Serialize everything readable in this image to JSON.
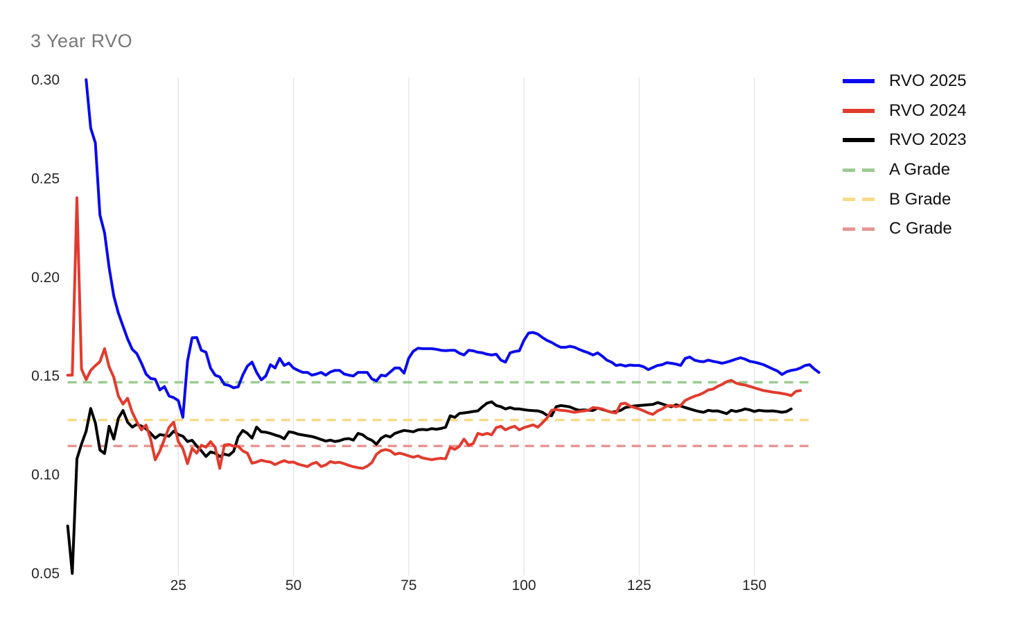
{
  "chart_data": {
    "type": "line",
    "title": "3 Year RVO",
    "xlabel": "",
    "ylabel": "",
    "xlim": [
      0,
      163
    ],
    "ylim": [
      0.05,
      0.3
    ],
    "x_ticks": [
      25,
      50,
      75,
      100,
      125,
      150
    ],
    "x_tick_labels": [
      "25",
      "50",
      "75",
      "100",
      "125",
      "150"
    ],
    "y_ticks": [
      0.3,
      0.25,
      0.2,
      0.15,
      0.1,
      0.05
    ],
    "y_tick_labels": [
      "0.30",
      "0.25",
      "0.20",
      "0.15",
      "0.10",
      "0.05"
    ],
    "grid": "vertical-only",
    "legend_position": "right",
    "series": [
      {
        "name": "RVO 2025",
        "color": "#0a0af0",
        "style": "solid",
        "x_start": 5,
        "values": [
          0.3,
          0.2755,
          0.268,
          0.2315,
          0.2225,
          0.2048,
          0.1905,
          0.1818,
          0.1752,
          0.1688,
          0.1635,
          0.1613,
          0.1565,
          0.151,
          0.1487,
          0.1483,
          0.1429,
          0.1446,
          0.1398,
          0.139,
          0.1375,
          0.129,
          0.1575,
          0.1693,
          0.1695,
          0.163,
          0.162,
          0.154,
          0.1504,
          0.1495,
          0.1457,
          0.1452,
          0.144,
          0.1445,
          0.1505,
          0.155,
          0.157,
          0.1518,
          0.148,
          0.15,
          0.1557,
          0.154,
          0.1589,
          0.1553,
          0.1565,
          0.154,
          0.1528,
          0.1518,
          0.1518,
          0.1504,
          0.151,
          0.1518,
          0.1504,
          0.152,
          0.1528,
          0.1528,
          0.151,
          0.1504,
          0.15,
          0.1518,
          0.1518,
          0.1518,
          0.1485,
          0.1475,
          0.1504,
          0.15,
          0.152,
          0.154,
          0.154,
          0.1514,
          0.159,
          0.1625,
          0.164,
          0.1638,
          0.1638,
          0.1638,
          0.1635,
          0.163,
          0.1628,
          0.163,
          0.163,
          0.1615,
          0.1606,
          0.163,
          0.1627,
          0.162,
          0.1617,
          0.161,
          0.1606,
          0.161,
          0.158,
          0.157,
          0.1617,
          0.1624,
          0.1627,
          0.168,
          0.1717,
          0.172,
          0.1712,
          0.1695,
          0.168,
          0.167,
          0.1656,
          0.1645,
          0.1645,
          0.165,
          0.1645,
          0.1634,
          0.1625,
          0.1617,
          0.1606,
          0.1617,
          0.16,
          0.158,
          0.157,
          0.1553,
          0.1557,
          0.155,
          0.1555,
          0.1553,
          0.1553,
          0.1546,
          0.1532,
          0.1543,
          0.1553,
          0.1557,
          0.1567,
          0.1564,
          0.156,
          0.1553,
          0.1589,
          0.1596,
          0.158,
          0.1574,
          0.1572,
          0.158,
          0.1574,
          0.157,
          0.1564,
          0.157,
          0.1577,
          0.1585,
          0.1592,
          0.1585,
          0.1574,
          0.157,
          0.1564,
          0.1557,
          0.1546,
          0.1535,
          0.1525,
          0.1507,
          0.1521,
          0.1528,
          0.1532,
          0.154,
          0.1553,
          0.1557,
          0.1535,
          0.1518
        ]
      },
      {
        "name": "RVO 2024",
        "color": "#e23b2d",
        "style": "solid",
        "x_start": 1,
        "values": [
          0.1504,
          0.1504,
          0.2402,
          0.1535,
          0.1481,
          0.1528,
          0.1552,
          0.1572,
          0.1638,
          0.1546,
          0.1493,
          0.1398,
          0.1357,
          0.1387,
          0.1316,
          0.1268,
          0.1227,
          0.1251,
          0.118,
          0.1075,
          0.112,
          0.118,
          0.124,
          0.1266,
          0.1167,
          0.1132,
          0.1056,
          0.1133,
          0.1109,
          0.1149,
          0.1139,
          0.1167,
          0.1139,
          0.1032,
          0.115,
          0.1153,
          0.1144,
          0.1144,
          0.112,
          0.1109,
          0.1058,
          0.1064,
          0.1073,
          0.1067,
          0.1064,
          0.1051,
          0.1062,
          0.1071,
          0.1062,
          0.1064,
          0.1053,
          0.1047,
          0.1041,
          0.1055,
          0.1062,
          0.1041,
          0.1049,
          0.1066,
          0.106,
          0.1063,
          0.1055,
          0.1047,
          0.104,
          0.1035,
          0.1032,
          0.1043,
          0.1061,
          0.1103,
          0.1121,
          0.1127,
          0.1121,
          0.1103,
          0.1109,
          0.1103,
          0.1095,
          0.1088,
          0.1095,
          0.1085,
          0.108,
          0.1076,
          0.108,
          0.1083,
          0.108,
          0.1138,
          0.1128,
          0.1144,
          0.118,
          0.1149,
          0.1158,
          0.1209,
          0.1202,
          0.1209,
          0.1202,
          0.1238,
          0.1245,
          0.1227,
          0.1238,
          0.1245,
          0.1227,
          0.1238,
          0.1245,
          0.1252,
          0.124,
          0.1262,
          0.1287,
          0.1326,
          0.133,
          0.1326,
          0.1324,
          0.132,
          0.1316,
          0.132,
          0.1323,
          0.1326,
          0.134,
          0.1337,
          0.1333,
          0.1323,
          0.1316,
          0.1312,
          0.1358,
          0.1362,
          0.1348,
          0.134,
          0.1333,
          0.1323,
          0.1312,
          0.1305,
          0.1323,
          0.1333,
          0.1348,
          0.135,
          0.1344,
          0.135,
          0.1376,
          0.1387,
          0.1397,
          0.1404,
          0.1415,
          0.1429,
          0.1433,
          0.1447,
          0.1457,
          0.1471,
          0.1478,
          0.1464,
          0.1457,
          0.1454,
          0.1447,
          0.144,
          0.1433,
          0.1426,
          0.1422,
          0.1418,
          0.1415,
          0.1411,
          0.1407,
          0.14,
          0.1422,
          0.1426
        ]
      },
      {
        "name": "RVO 2023",
        "color": "#000000",
        "style": "solid",
        "x_start": 1,
        "values": [
          0.074,
          0.05,
          0.108,
          0.1155,
          0.122,
          0.1335,
          0.1262,
          0.1125,
          0.1107,
          0.1245,
          0.118,
          0.1285,
          0.1325,
          0.1266,
          0.1241,
          0.1255,
          0.1246,
          0.1232,
          0.1209,
          0.1185,
          0.1203,
          0.1199,
          0.1195,
          0.122,
          0.1203,
          0.1195,
          0.1168,
          0.1174,
          0.1145,
          0.1121,
          0.1092,
          0.1115,
          0.1109,
          0.1092,
          0.1104,
          0.1098,
          0.1118,
          0.1191,
          0.1224,
          0.1209,
          0.1185,
          0.1241,
          0.1217,
          0.1215,
          0.1209,
          0.1201,
          0.1194,
          0.1182,
          0.1217,
          0.1213,
          0.1205,
          0.1201,
          0.1197,
          0.1193,
          0.1186,
          0.1178,
          0.117,
          0.1175,
          0.1168,
          0.1172,
          0.118,
          0.1183,
          0.1175,
          0.1209,
          0.1202,
          0.1184,
          0.1174,
          0.1154,
          0.1184,
          0.1198,
          0.1191,
          0.1209,
          0.1217,
          0.1224,
          0.1221,
          0.1217,
          0.1227,
          0.1229,
          0.1227,
          0.1233,
          0.123,
          0.1234,
          0.124,
          0.1298,
          0.129,
          0.131,
          0.1313,
          0.1316,
          0.132,
          0.1323,
          0.1344,
          0.1362,
          0.1369,
          0.135,
          0.1344,
          0.1333,
          0.134,
          0.1333,
          0.1333,
          0.1329,
          0.1326,
          0.1324,
          0.1323,
          0.1316,
          0.1301,
          0.1298,
          0.1344,
          0.135,
          0.1347,
          0.1343,
          0.1333,
          0.1326,
          0.1328,
          0.1326,
          0.1325,
          0.1337,
          0.133,
          0.1323,
          0.1316,
          0.132,
          0.1326,
          0.134,
          0.1344,
          0.1348,
          0.135,
          0.1352,
          0.1354,
          0.1356,
          0.1365,
          0.1358,
          0.135,
          0.1344,
          0.1354,
          0.1348,
          0.134,
          0.1333,
          0.1326,
          0.132,
          0.1316,
          0.1326,
          0.1322,
          0.1323,
          0.1316,
          0.1309,
          0.1326,
          0.132,
          0.1325,
          0.1333,
          0.1328,
          0.132,
          0.1326,
          0.1323,
          0.1322,
          0.1323,
          0.132,
          0.1316,
          0.132,
          0.1333
        ]
      }
    ],
    "reference_lines": [
      {
        "name": "A Grade",
        "value": 0.1468,
        "color": "#9ccb92",
        "style": "dashed"
      },
      {
        "name": "B Grade",
        "value": 0.1277,
        "color": "#f8da87",
        "style": "dashed"
      },
      {
        "name": "C Grade",
        "value": 0.1145,
        "color": "#e69693",
        "style": "dashed"
      }
    ]
  },
  "colors": {
    "background": "#ffffff",
    "grid": "#e7e7e7",
    "tick_text": "#262626",
    "title_text": "#787878",
    "legend_text": "#101010"
  }
}
